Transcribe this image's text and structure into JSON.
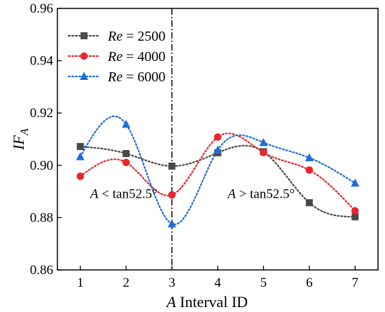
{
  "chart_data": {
    "type": "scatter",
    "x": [
      1,
      2,
      3,
      4,
      5,
      6,
      7
    ],
    "xlim": [
      0.5,
      7.5
    ],
    "ylim": [
      0.86,
      0.96
    ],
    "xticks": [
      "1",
      "2",
      "3",
      "4",
      "5",
      "6",
      "7"
    ],
    "yticks": [
      "0.86",
      "0.88",
      "0.90",
      "0.92",
      "0.94",
      "0.96"
    ],
    "xlabel": {
      "var": "A",
      "rest": " Interval ID"
    },
    "ylabel": {
      "main": "IF",
      "sub": "A"
    },
    "grid": false,
    "legend_position": "top-left",
    "series": [
      {
        "name": "Re = 2500",
        "label_var": "Re",
        "label_value": " = 2500",
        "color": "#4a4a4a",
        "marker": "square",
        "line_style": "dotted",
        "values": [
          0.9072,
          0.9045,
          0.8997,
          0.9048,
          0.9052,
          0.8857,
          0.8803
        ]
      },
      {
        "name": "Re = 4000",
        "label_var": "Re",
        "label_value": " = 4000",
        "color": "#e8262c",
        "marker": "circle",
        "line_style": "dotted",
        "values": [
          0.8958,
          0.9011,
          0.8887,
          0.9108,
          0.9049,
          0.8982,
          0.8826
        ]
      },
      {
        "name": "Re = 6000",
        "label_var": "Re",
        "label_value": " = 6000",
        "color": "#1c6fd4",
        "marker": "triangle",
        "line_style": "dotted",
        "values": [
          0.9033,
          0.9157,
          0.8776,
          0.9058,
          0.9087,
          0.9029,
          0.8932
        ]
      }
    ],
    "annotations": [
      {
        "var": "A",
        "rest": " < tan52.5°",
        "x": 1.95,
        "y": 0.8875,
        "anchor": "middle"
      },
      {
        "var": "A",
        "rest": " > tan52.5°",
        "x": 4.95,
        "y": 0.8875,
        "anchor": "middle"
      }
    ],
    "divider_x": 3
  }
}
